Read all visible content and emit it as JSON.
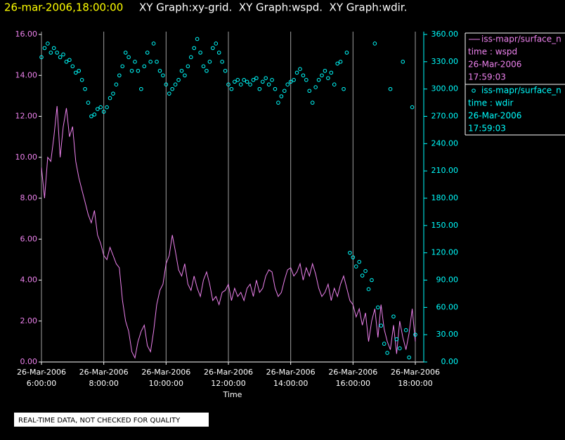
{
  "chart_data": {
    "type": "line-scatter",
    "title": "26-mar-2006,18:00:00",
    "subtitle": "XY Graph:xy-grid.  XY Graph:wspd.  XY Graph:wdir.",
    "x_label": "Time",
    "note": "REAL-TIME DATA, NOT CHECKED FOR QUALITY",
    "xlim": [
      6,
      18
    ],
    "xticks": [
      {
        "value": 6,
        "label": "26-Mar-2006\n6:00:00"
      },
      {
        "value": 8,
        "label": "26-Mar-2006\n8:00:00"
      },
      {
        "value": 10,
        "label": "26-Mar-2006\n10:00:00"
      },
      {
        "value": 12,
        "label": "26-Mar-2006\n12:00:00"
      },
      {
        "value": 14,
        "label": "26-Mar-2006\n14:00:00"
      },
      {
        "value": 16,
        "label": "26-Mar-2006\n16:00:00"
      },
      {
        "value": 18,
        "label": "26-Mar-2006\n18:00:00"
      }
    ],
    "ylim": [
      0,
      16
    ],
    "yticks": [
      {
        "value": 0,
        "label": "0.00"
      },
      {
        "value": 2,
        "label": "2.00"
      },
      {
        "value": 4,
        "label": "4.00"
      },
      {
        "value": 6,
        "label": "6.00"
      },
      {
        "value": 8,
        "label": "8.00"
      },
      {
        "value": 10,
        "label": "10.00"
      },
      {
        "value": 12,
        "label": "12.00"
      },
      {
        "value": 14,
        "label": "14.00"
      },
      {
        "value": 16,
        "label": "16.00"
      }
    ],
    "y2lim": [
      0,
      360
    ],
    "y2ticks": [
      {
        "value": 0,
        "label": "0.00"
      },
      {
        "value": 30,
        "label": "30.00"
      },
      {
        "value": 60,
        "label": "60.00"
      },
      {
        "value": 90,
        "label": "90.00"
      },
      {
        "value": 120,
        "label": "120.00"
      },
      {
        "value": 150,
        "label": "150.00"
      },
      {
        "value": 180,
        "label": "180.00"
      },
      {
        "value": 210,
        "label": "210.00"
      },
      {
        "value": 240,
        "label": "240.00"
      },
      {
        "value": 270,
        "label": "270.00"
      },
      {
        "value": 300,
        "label": "300.00"
      },
      {
        "value": 330,
        "label": "330.00"
      },
      {
        "value": 360,
        "label": "360.00"
      }
    ],
    "grid": "x",
    "x": [
      6.0,
      6.1,
      6.2,
      6.3,
      6.4,
      6.5,
      6.6,
      6.7,
      6.8,
      6.9,
      7.0,
      7.1,
      7.2,
      7.3,
      7.4,
      7.5,
      7.6,
      7.7,
      7.8,
      7.9,
      8.0,
      8.1,
      8.2,
      8.3,
      8.4,
      8.5,
      8.6,
      8.7,
      8.8,
      8.9,
      9.0,
      9.1,
      9.2,
      9.3,
      9.4,
      9.5,
      9.6,
      9.7,
      9.8,
      9.9,
      10.0,
      10.1,
      10.2,
      10.3,
      10.4,
      10.5,
      10.6,
      10.7,
      10.8,
      10.9,
      11.0,
      11.1,
      11.2,
      11.3,
      11.4,
      11.5,
      11.6,
      11.7,
      11.8,
      11.9,
      12.0,
      12.1,
      12.2,
      12.3,
      12.4,
      12.5,
      12.6,
      12.7,
      12.8,
      12.9,
      13.0,
      13.1,
      13.2,
      13.3,
      13.4,
      13.5,
      13.6,
      13.7,
      13.8,
      13.9,
      14.0,
      14.1,
      14.2,
      14.3,
      14.4,
      14.5,
      14.6,
      14.7,
      14.8,
      14.9,
      15.0,
      15.1,
      15.2,
      15.3,
      15.4,
      15.5,
      15.6,
      15.7,
      15.8,
      15.9,
      16.0,
      16.1,
      16.2,
      16.3,
      16.4,
      16.5,
      16.6,
      16.7,
      16.8,
      16.9,
      17.0,
      17.1,
      17.2,
      17.3,
      17.4,
      17.5,
      17.6,
      17.7,
      17.8,
      17.9,
      18.0
    ],
    "series": [
      {
        "name": "iss-mapr/surface_n",
        "legend_text": [
          "time : wspd",
          "26-Mar-2006",
          "17:59:03"
        ],
        "color": "#ee82ee",
        "marker": "line",
        "values": [
          9.5,
          8.0,
          10,
          9.8,
          11,
          12.5,
          10,
          11.5,
          12.4,
          11,
          11.5,
          9.8,
          9.0,
          8.4,
          7.8,
          7.2,
          6.8,
          7.4,
          6.2,
          5.8,
          5.2,
          5.0,
          5.6,
          5.2,
          4.8,
          4.6,
          3.0,
          2.0,
          1.5,
          0.5,
          0.2,
          1.0,
          1.5,
          1.8,
          0.8,
          0.5,
          1.5,
          2.8,
          3.5,
          3.8,
          4.8,
          5.2,
          6.2,
          5.4,
          4.5,
          4.2,
          4.8,
          3.8,
          3.5,
          4.2,
          3.6,
          3.2,
          4.0,
          4.4,
          3.8,
          3.0,
          3.2,
          2.8,
          3.4,
          3.5,
          3.8,
          3.0,
          3.6,
          3.2,
          3.4,
          3.0,
          3.6,
          3.8,
          3.2,
          4.0,
          3.4,
          3.6,
          4.2,
          4.5,
          4.4,
          3.6,
          3.2,
          3.4,
          4.0,
          4.5,
          4.6,
          4.2,
          4.4,
          4.8,
          4.0,
          4.6,
          4.2,
          4.8,
          4.3,
          3.6,
          3.2,
          3.4,
          3.8,
          3.0,
          3.6,
          3.2,
          3.8,
          4.2,
          3.6,
          3.0,
          2.8,
          2.2,
          2.6,
          1.8,
          2.4,
          1.0,
          2.0,
          2.6,
          1.2,
          2.8,
          1.6,
          1.0,
          0.6,
          1.8,
          0.4,
          2.0,
          1.2,
          0.6,
          1.4,
          2.6,
          1.0
        ]
      },
      {
        "name": "iss-mapr/surface_n",
        "legend_text": [
          "time : wdir",
          "26-Mar-2006",
          "17:59:03"
        ],
        "color": "#00ffff",
        "marker": "circle",
        "axis": "y2",
        "values": [
          335,
          345,
          350,
          340,
          345,
          340,
          335,
          338,
          330,
          332,
          325,
          318,
          320,
          310,
          300,
          285,
          270,
          272,
          278,
          280,
          275,
          280,
          290,
          295,
          305,
          315,
          325,
          340,
          335,
          320,
          330,
          320,
          300,
          325,
          340,
          330,
          350,
          330,
          320,
          315,
          305,
          295,
          300,
          305,
          310,
          320,
          315,
          325,
          335,
          345,
          355,
          340,
          325,
          320,
          330,
          345,
          350,
          340,
          330,
          320,
          305,
          300,
          308,
          310,
          305,
          310,
          308,
          305,
          310,
          312,
          300,
          308,
          312,
          305,
          310,
          300,
          285,
          292,
          298,
          305,
          308,
          310,
          318,
          322,
          315,
          310,
          298,
          285,
          302,
          310,
          315,
          320,
          312,
          318,
          305,
          328,
          330,
          300,
          340,
          120,
          115,
          105,
          110,
          95,
          100,
          80,
          90,
          350,
          60,
          40,
          20,
          10,
          300,
          50,
          25,
          15,
          330,
          35,
          5,
          280,
          30
        ]
      }
    ]
  }
}
